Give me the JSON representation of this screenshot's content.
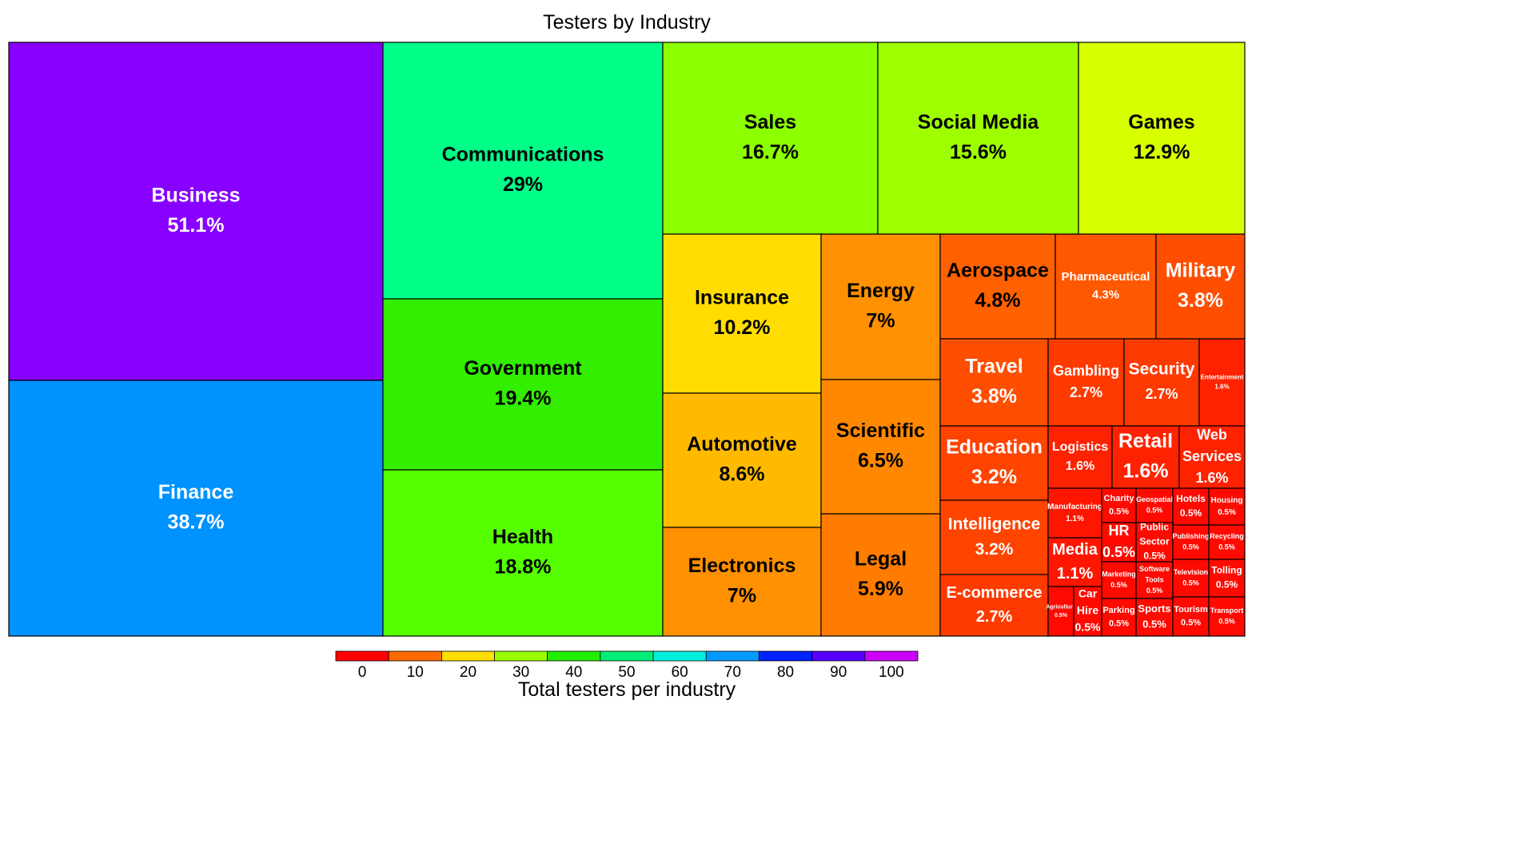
{
  "chart_data": {
    "type": "treemap",
    "title": "Testers by Industry",
    "colorbar": {
      "label": "Total testers per industry",
      "ticks": [
        0,
        10,
        20,
        30,
        40,
        50,
        60,
        70,
        80,
        90,
        100
      ],
      "range": [
        0,
        110
      ],
      "colors": [
        "#ff0000",
        "#ff6a00",
        "#ffdd00",
        "#99ff00",
        "#22ee00",
        "#00ee77",
        "#00eedd",
        "#0099ff",
        "#0022ff",
        "#5500ff",
        "#cc00ff"
      ]
    },
    "items": [
      {
        "label": "Business",
        "value": "51.1%",
        "color": "#8800ff",
        "text_color": "#ffffff"
      },
      {
        "label": "Finance",
        "value": "38.7%",
        "color": "#0093ff",
        "text_color": "#ffffff"
      },
      {
        "label": "Communications",
        "value": "29%",
        "color": "#00ff88",
        "text_color": "#000000"
      },
      {
        "label": "Government",
        "value": "19.4%",
        "color": "#33ee00",
        "text_color": "#000000"
      },
      {
        "label": "Health",
        "value": "18.8%",
        "color": "#55ff00",
        "text_color": "#000000"
      },
      {
        "label": "Sales",
        "value": "16.7%",
        "color": "#8cff00",
        "text_color": "#000000"
      },
      {
        "label": "Social Media",
        "value": "15.6%",
        "color": "#9eff00",
        "text_color": "#000000"
      },
      {
        "label": "Games",
        "value": "12.9%",
        "color": "#d8ff00",
        "text_color": "#000000"
      },
      {
        "label": "Insurance",
        "value": "10.2%",
        "color": "#ffdd00",
        "text_color": "#000000"
      },
      {
        "label": "Energy",
        "value": "7%",
        "color": "#ff9000",
        "text_color": "#000000"
      },
      {
        "label": "Automotive",
        "value": "8.6%",
        "color": "#ffba00",
        "text_color": "#000000"
      },
      {
        "label": "Scientific",
        "value": "6.5%",
        "color": "#ff8800",
        "text_color": "#000000"
      },
      {
        "label": "Electronics",
        "value": "7%",
        "color": "#ff9000",
        "text_color": "#000000"
      },
      {
        "label": "Legal",
        "value": "5.9%",
        "color": "#ff7c00",
        "text_color": "#000000"
      },
      {
        "label": "Aerospace",
        "value": "4.8%",
        "color": "#ff6000",
        "text_color": "#000000"
      },
      {
        "label": "Pharmaceutical",
        "value": "4.3%",
        "color": "#ff5800",
        "text_color": "#ffffff"
      },
      {
        "label": "Military",
        "value": "3.8%",
        "color": "#ff4e00",
        "text_color": "#ffffff"
      },
      {
        "label": "Travel",
        "value": "3.8%",
        "color": "#ff4e00",
        "text_color": "#ffffff"
      },
      {
        "label": "Gambling",
        "value": "2.7%",
        "color": "#ff3a00",
        "text_color": "#ffffff"
      },
      {
        "label": "Security",
        "value": "2.7%",
        "color": "#ff3a00",
        "text_color": "#ffffff"
      },
      {
        "label": "Entertainment",
        "value": "1.6%",
        "color": "#ff2200",
        "text_color": "#ffffff"
      },
      {
        "label": "Education",
        "value": "3.2%",
        "color": "#ff4400",
        "text_color": "#ffffff"
      },
      {
        "label": "Logistics",
        "value": "1.6%",
        "color": "#ff2200",
        "text_color": "#ffffff"
      },
      {
        "label": "Retail",
        "value": "1.6%",
        "color": "#ff2200",
        "text_color": "#ffffff"
      },
      {
        "label": "Web Services",
        "value": "1.6%",
        "color": "#ff2200",
        "text_color": "#ffffff"
      },
      {
        "label": "Intelligence",
        "value": "3.2%",
        "color": "#ff4400",
        "text_color": "#ffffff"
      },
      {
        "label": "Manufacturing",
        "value": "1.1%",
        "color": "#ff1600",
        "text_color": "#ffffff"
      },
      {
        "label": "Charity",
        "value": "0.5%",
        "color": "#ff0a00",
        "text_color": "#ffffff"
      },
      {
        "label": "Geospatial",
        "value": "0.5%",
        "color": "#ff0a00",
        "text_color": "#ffffff"
      },
      {
        "label": "Hotels",
        "value": "0.5%",
        "color": "#ff0a00",
        "text_color": "#ffffff"
      },
      {
        "label": "Housing",
        "value": "0.5%",
        "color": "#ff0a00",
        "text_color": "#ffffff"
      },
      {
        "label": "E-commerce",
        "value": "2.7%",
        "color": "#ff3a00",
        "text_color": "#ffffff"
      },
      {
        "label": "Media",
        "value": "1.1%",
        "color": "#ff1600",
        "text_color": "#ffffff"
      },
      {
        "label": "HR",
        "value": "0.5%",
        "color": "#ff0a00",
        "text_color": "#ffffff"
      },
      {
        "label": "Public Sector",
        "value": "0.5%",
        "color": "#ff0a00",
        "text_color": "#ffffff"
      },
      {
        "label": "Publishing",
        "value": "0.5%",
        "color": "#ff0a00",
        "text_color": "#ffffff"
      },
      {
        "label": "Recycling",
        "value": "0.5%",
        "color": "#ff0a00",
        "text_color": "#ffffff"
      },
      {
        "label": "Marketing",
        "value": "0.5%",
        "color": "#ff0a00",
        "text_color": "#ffffff"
      },
      {
        "label": "Software Tools",
        "value": "0.5%",
        "color": "#ff0a00",
        "text_color": "#ffffff"
      },
      {
        "label": "Television",
        "value": "0.5%",
        "color": "#ff0a00",
        "text_color": "#ffffff"
      },
      {
        "label": "Tolling",
        "value": "0.5%",
        "color": "#ff0a00",
        "text_color": "#ffffff"
      },
      {
        "label": "Agriculture",
        "value": "0.5%",
        "color": "#ff0a00",
        "text_color": "#ffffff"
      },
      {
        "label": "Car Hire",
        "value": "0.5%",
        "color": "#ff0a00",
        "text_color": "#ffffff"
      },
      {
        "label": "Parking",
        "value": "0.5%",
        "color": "#ff0a00",
        "text_color": "#ffffff"
      },
      {
        "label": "Sports",
        "value": "0.5%",
        "color": "#ff0a00",
        "text_color": "#ffffff"
      },
      {
        "label": "Tourism",
        "value": "0.5%",
        "color": "#ff0a00",
        "text_color": "#ffffff"
      },
      {
        "label": "Transport",
        "value": "0.5%",
        "color": "#ff0a00",
        "text_color": "#ffffff"
      }
    ]
  }
}
